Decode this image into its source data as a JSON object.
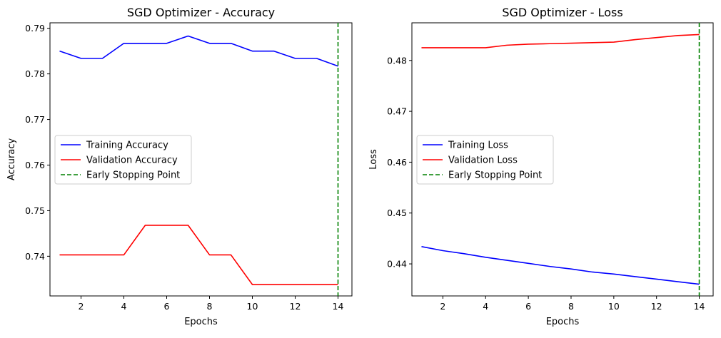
{
  "chart_data": [
    {
      "type": "line",
      "title": "SGD Optimizer - Accuracy",
      "xlabel": "Epochs",
      "ylabel": "Accuracy",
      "xlim": [
        0.55,
        14.65
      ],
      "ylim": [
        0.7313,
        0.7912
      ],
      "x_ticks": [
        2,
        4,
        6,
        8,
        10,
        12,
        14
      ],
      "y_ticks": [
        0.74,
        0.75,
        0.76,
        0.77,
        0.78,
        0.79
      ],
      "y_tick_labels": [
        "0.74",
        "0.75",
        "0.76",
        "0.77",
        "0.78",
        "0.79"
      ],
      "x": [
        1,
        2,
        3,
        4,
        5,
        6,
        7,
        8,
        9,
        10,
        11,
        12,
        13,
        14
      ],
      "series": [
        {
          "name": "Training Accuracy",
          "color": "#0000ff",
          "values": [
            0.785,
            0.7834,
            0.7834,
            0.7867,
            0.7867,
            0.7867,
            0.7883,
            0.7867,
            0.7867,
            0.785,
            0.785,
            0.7834,
            0.7834,
            0.7817
          ]
        },
        {
          "name": "Validation Accuracy",
          "color": "#ff0000",
          "values": [
            0.7403,
            0.7403,
            0.7403,
            0.7403,
            0.7468,
            0.7468,
            0.7468,
            0.7403,
            0.7403,
            0.7338,
            0.7338,
            0.7338,
            0.7338,
            0.7338
          ]
        }
      ],
      "vline": {
        "name": "Early Stopping Point",
        "x": 14,
        "color": "#008000"
      },
      "legend": "center-left",
      "grid": false
    },
    {
      "type": "line",
      "title": "SGD Optimizer - Loss",
      "xlabel": "Epochs",
      "ylabel": "Loss",
      "xlim": [
        0.55,
        14.65
      ],
      "ylim": [
        0.4337,
        0.4874
      ],
      "x_ticks": [
        2,
        4,
        6,
        8,
        10,
        12,
        14
      ],
      "y_ticks": [
        0.44,
        0.45,
        0.46,
        0.47,
        0.48
      ],
      "y_tick_labels": [
        "0.44",
        "0.45",
        "0.46",
        "0.47",
        "0.48"
      ],
      "x": [
        1,
        2,
        3,
        4,
        5,
        6,
        7,
        8,
        9,
        10,
        11,
        12,
        13,
        14
      ],
      "series": [
        {
          "name": "Training Loss",
          "color": "#0000ff",
          "values": [
            0.4434,
            0.4426,
            0.442,
            0.4413,
            0.4407,
            0.4401,
            0.4395,
            0.439,
            0.4384,
            0.438,
            0.4375,
            0.437,
            0.4365,
            0.436
          ]
        },
        {
          "name": "Validation Loss",
          "color": "#ff0000",
          "values": [
            0.4825,
            0.4825,
            0.4825,
            0.4825,
            0.483,
            0.4832,
            0.4833,
            0.4834,
            0.4835,
            0.4836,
            0.4841,
            0.4845,
            0.4849,
            0.4851
          ]
        }
      ],
      "vline": {
        "name": "Early Stopping Point",
        "x": 14,
        "color": "#008000"
      },
      "legend": "center-left",
      "grid": false
    }
  ]
}
